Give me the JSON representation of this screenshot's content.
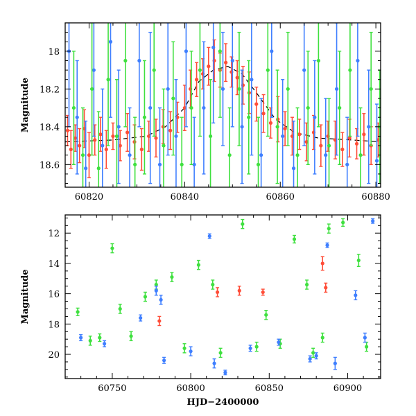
{
  "chart_data": [
    {
      "type": "scatter",
      "title": "",
      "xlabel": "",
      "ylabel": "Magnitude",
      "xlim": [
        60815,
        60881
      ],
      "ylim": [
        18.72,
        17.85
      ],
      "y_inverted": true,
      "grid": false,
      "xticks": [
        60820,
        60840,
        60860,
        60880
      ],
      "xtick_labels": [
        "60820",
        "60840",
        "60860",
        "60880"
      ],
      "yticks": [
        18,
        18.2,
        18.4,
        18.6
      ],
      "ytick_labels": [
        "18",
        "18.2",
        "18.4",
        "18.6"
      ],
      "model_curve": {
        "style": "dashed",
        "color": "#000000",
        "x": [
          60815,
          60825,
          60832,
          60836,
          60840,
          60843,
          60846,
          60849,
          60852,
          60855,
          60859,
          60863,
          60868,
          60875,
          60881
        ],
        "y": [
          18.48,
          18.47,
          18.45,
          18.4,
          18.3,
          18.16,
          18.1,
          18.08,
          18.12,
          18.22,
          18.36,
          18.43,
          18.46,
          18.47,
          18.48
        ]
      },
      "series": [
        {
          "color": "#ff4d38",
          "x": [
            60815.5,
            60816.2,
            60817.1,
            60818.0,
            60819.0,
            60820.0,
            60821.2,
            60822.4,
            60823.6,
            60825.0,
            60826.5,
            60828.0,
            60829.5,
            60831.0,
            60832.5,
            60834.0,
            60835.5,
            60837.0,
            60838.5,
            60840.0,
            60841.2,
            60842.5,
            60843.8,
            60845.0,
            60846.2,
            60847.4,
            60848.6,
            60849.8,
            60851.0,
            60852.2,
            60853.5,
            60855.0,
            60856.5,
            60858.0,
            60859.5,
            60861.0,
            60862.5,
            60864.0,
            60865.5,
            60867.0,
            60868.5,
            60870.0,
            60871.5,
            60873.0,
            60874.5,
            60876.0,
            60877.5,
            60879.0,
            60880.5
          ],
          "y": [
            18.42,
            18.52,
            18.46,
            18.5,
            18.41,
            18.55,
            18.47,
            18.44,
            18.52,
            18.45,
            18.5,
            18.43,
            18.48,
            18.52,
            18.45,
            18.46,
            18.4,
            18.42,
            18.35,
            18.3,
            18.2,
            18.15,
            18.12,
            18.08,
            18.05,
            18.1,
            18.06,
            18.11,
            18.14,
            18.18,
            18.22,
            18.28,
            18.33,
            18.38,
            18.36,
            18.41,
            18.45,
            18.44,
            18.48,
            18.43,
            18.5,
            18.45,
            18.47,
            18.52,
            18.46,
            18.49,
            18.44,
            18.5,
            18.47
          ],
          "err": [
            0.08,
            0.1,
            0.07,
            0.09,
            0.1,
            0.12,
            0.08,
            0.09,
            0.1,
            0.07,
            0.08,
            0.1,
            0.09,
            0.11,
            0.08,
            0.1,
            0.09,
            0.1,
            0.08,
            0.12,
            0.1,
            0.09,
            0.08,
            0.1,
            0.11,
            0.09,
            0.1,
            0.08,
            0.09,
            0.1,
            0.11,
            0.09,
            0.1,
            0.08,
            0.12,
            0.09,
            0.1,
            0.08,
            0.1,
            0.09,
            0.11,
            0.08,
            0.1,
            0.09,
            0.1,
            0.08,
            0.11,
            0.1,
            0.09
          ]
        },
        {
          "color": "#3f7fff",
          "x": [
            60815.8,
            60817.5,
            60819.3,
            60821.0,
            60822.8,
            60824.5,
            60826.2,
            60828.5,
            60830.5,
            60832.8,
            60834.8,
            60836.5,
            60838.2,
            60840.3,
            60842.0,
            60844.0,
            60846.0,
            60848.0,
            60850.0,
            60852.0,
            60854.0,
            60856.0,
            60858.2,
            60860.5,
            60862.8,
            60865.0,
            60867.2,
            60869.5,
            60871.8,
            60874.0,
            60876.2,
            60878.5,
            60880.2
          ],
          "y": [
            18.0,
            18.35,
            18.62,
            18.1,
            18.5,
            17.95,
            18.4,
            18.55,
            18.05,
            18.3,
            18.6,
            18.2,
            18.45,
            18.0,
            18.6,
            18.3,
            17.98,
            18.2,
            18.05,
            18.4,
            18.15,
            18.55,
            18.0,
            18.45,
            18.62,
            18.1,
            18.35,
            18.55,
            18.2,
            18.6,
            18.05,
            18.4,
            18.58
          ],
          "err": [
            0.4,
            0.3,
            0.25,
            0.35,
            0.3,
            0.4,
            0.3,
            0.25,
            0.35,
            0.4,
            0.3,
            0.35,
            0.3,
            0.4,
            0.25,
            0.35,
            0.4,
            0.3,
            0.35,
            0.3,
            0.4,
            0.3,
            0.35,
            0.3,
            0.25,
            0.4,
            0.3,
            0.3,
            0.35,
            0.25,
            0.4,
            0.3,
            0.3
          ]
        },
        {
          "color": "#3fe03f",
          "x": [
            60816.8,
            60818.7,
            60820.6,
            60822.0,
            60824.0,
            60825.8,
            60827.6,
            60829.6,
            60831.6,
            60833.6,
            60835.6,
            60837.6,
            60839.4,
            60841.4,
            60843.2,
            60845.4,
            60847.4,
            60849.4,
            60851.4,
            60853.4,
            60855.4,
            60857.4,
            60859.4,
            60861.6,
            60863.6,
            60865.8,
            60868.0,
            60870.2,
            60872.4,
            60874.6,
            60876.8,
            60879.0,
            60880.8
          ],
          "y": [
            18.3,
            18.55,
            18.2,
            18.62,
            18.15,
            18.45,
            18.05,
            18.6,
            18.35,
            18.1,
            18.5,
            18.25,
            18.6,
            18.3,
            18.1,
            18.45,
            18.0,
            18.55,
            18.2,
            18.35,
            18.6,
            18.1,
            18.4,
            18.2,
            18.55,
            18.3,
            18.05,
            18.5,
            18.3,
            18.1,
            18.55,
            18.2,
            18.4
          ],
          "err": [
            0.3,
            0.25,
            0.35,
            0.3,
            0.35,
            0.3,
            0.35,
            0.25,
            0.3,
            0.35,
            0.3,
            0.3,
            0.25,
            0.3,
            0.35,
            0.3,
            0.35,
            0.25,
            0.3,
            0.3,
            0.25,
            0.35,
            0.3,
            0.3,
            0.25,
            0.3,
            0.35,
            0.25,
            0.3,
            0.35,
            0.25,
            0.3,
            0.3
          ]
        }
      ]
    },
    {
      "type": "scatter",
      "title": "",
      "xlabel": "HJD−2400000",
      "ylabel": "Magnitude",
      "xlim": [
        60720,
        60921
      ],
      "ylim": [
        21.6,
        10.8
      ],
      "y_inverted": true,
      "grid": false,
      "xticks": [
        60750,
        60800,
        60850,
        60900
      ],
      "xtick_labels": [
        "60750",
        "60800",
        "60850",
        "60900"
      ],
      "yticks": [
        12,
        14,
        16,
        18,
        20
      ],
      "ytick_labels": [
        "12",
        "14",
        "16",
        "18",
        "20"
      ],
      "series": [
        {
          "color": "#3fe03f",
          "x": [
            60728,
            60736,
            60742,
            60750,
            60755,
            60762,
            60771,
            60778,
            60788,
            60796,
            60805,
            60814,
            60819,
            60833,
            60842,
            60848,
            60857,
            60866,
            60874,
            60878,
            60884,
            60888,
            60897,
            60907,
            60912
          ],
          "y": [
            17.2,
            19.1,
            18.9,
            13.0,
            17.0,
            18.8,
            16.2,
            15.4,
            14.9,
            19.6,
            14.1,
            15.4,
            19.9,
            11.4,
            19.5,
            17.4,
            19.3,
            12.4,
            15.4,
            19.9,
            18.9,
            11.7,
            11.3,
            13.8,
            19.5
          ],
          "err": [
            0.25,
            0.3,
            0.25,
            0.3,
            0.3,
            0.3,
            0.3,
            0.3,
            0.3,
            0.3,
            0.3,
            0.3,
            0.3,
            0.3,
            0.3,
            0.3,
            0.3,
            0.25,
            0.3,
            0.3,
            0.3,
            0.3,
            0.25,
            0.4,
            0.3
          ]
        },
        {
          "color": "#3f7fff",
          "x": [
            60730,
            60745,
            60768,
            60778,
            60781,
            60783,
            60800,
            60812,
            60815,
            60822,
            60838,
            60856,
            60876,
            60880,
            60887,
            60892,
            60905,
            60911,
            60916
          ],
          "y": [
            18.9,
            19.3,
            17.6,
            15.8,
            16.4,
            20.4,
            19.8,
            12.2,
            20.6,
            21.2,
            19.6,
            19.2,
            20.3,
            20.1,
            12.8,
            20.6,
            16.1,
            18.9,
            11.2
          ],
          "err": [
            0.2,
            0.2,
            0.2,
            0.3,
            0.3,
            0.2,
            0.3,
            0.15,
            0.3,
            0.15,
            0.2,
            0.2,
            0.2,
            0.2,
            0.15,
            0.4,
            0.3,
            0.3,
            0.15
          ]
        },
        {
          "color": "#ff4d38",
          "x": [
            60780,
            60817,
            60831,
            60846,
            60884,
            60886
          ],
          "y": [
            17.8,
            15.9,
            15.8,
            15.9,
            14.0,
            15.6
          ],
          "err": [
            0.3,
            0.3,
            0.3,
            0.2,
            0.45,
            0.3
          ]
        }
      ]
    }
  ]
}
